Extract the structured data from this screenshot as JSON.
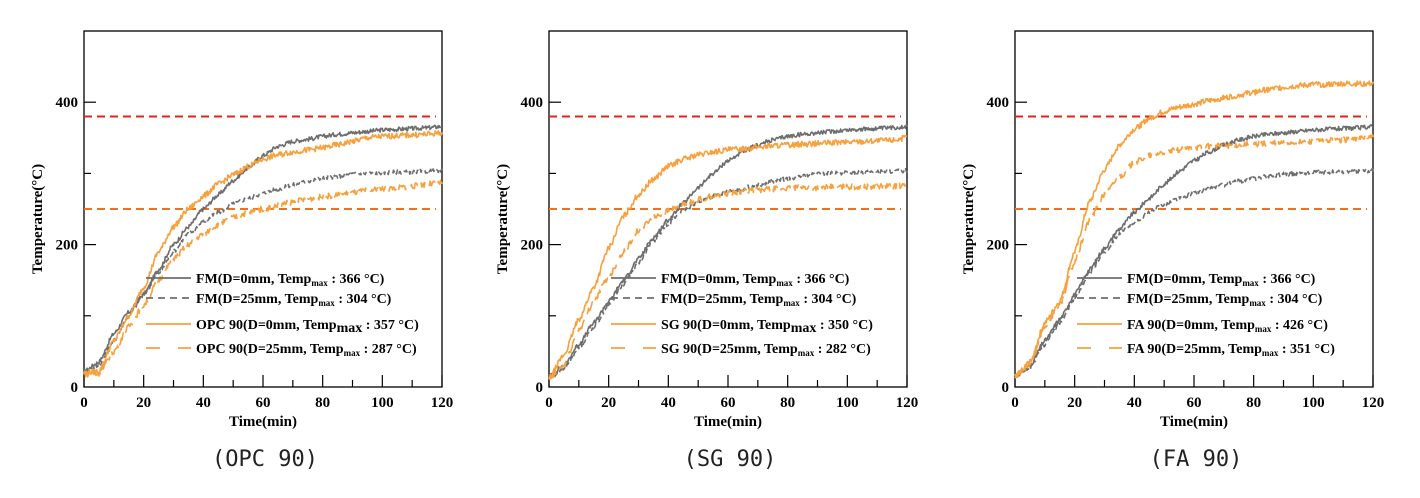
{
  "chart_data": [
    {
      "type": "line",
      "caption": "(OPC 90)",
      "xlabel": "Time(min)",
      "ylabel": "Temperature(°C)",
      "xlim": [
        0,
        120
      ],
      "ylim": [
        0,
        500
      ],
      "xticks": [
        0,
        20,
        40,
        60,
        80,
        100,
        120
      ],
      "yticks_labeled": [
        0,
        200,
        400
      ],
      "yticks_minor": [
        100,
        300
      ],
      "grid": false,
      "legend_position": "lower-right",
      "reference_lines": [
        {
          "name": "limit-380",
          "y": 380,
          "color": "#e8201c",
          "style": "dashed"
        },
        {
          "name": "limit-250",
          "y": 250,
          "color": "#f07020",
          "style": "dashed"
        }
      ],
      "x": [
        0,
        5,
        10,
        15,
        20,
        25,
        30,
        35,
        40,
        45,
        50,
        55,
        60,
        65,
        70,
        75,
        80,
        85,
        90,
        95,
        100,
        105,
        110,
        115,
        120
      ],
      "series": [
        {
          "name": "FM(D=0mm, Temp_max : 366 °C)",
          "label_main": "FM(D=0mm, Temp",
          "label_sub": "max",
          "label_end": " : 366 °C)",
          "color": "#6e6e6e",
          "style": "solid",
          "values": [
            22,
            35,
            75,
            105,
            130,
            165,
            200,
            225,
            250,
            270,
            290,
            308,
            325,
            338,
            345,
            348,
            352,
            355,
            357,
            359,
            361,
            362,
            363,
            364,
            366
          ]
        },
        {
          "name": "FM(D=25mm, Temp_max : 304 °C)",
          "label_main": "FM(D=25mm, Temp",
          "label_sub": "max",
          "label_end": " : 304 °C)",
          "color": "#6e6e6e",
          "style": "dashed",
          "values": [
            20,
            30,
            65,
            100,
            130,
            160,
            190,
            215,
            232,
            245,
            257,
            265,
            272,
            278,
            284,
            289,
            293,
            296,
            299,
            300,
            301,
            302,
            302,
            303,
            304
          ]
        },
        {
          "name": "OPC 90(D=0mm, Temp_max : 357 °C)",
          "label_main": "OPC 90(D=0mm, Temp",
          "label_sub": "max",
          "label_end": " : 357 °C)",
          "color": "#f7a03c",
          "style": "solid",
          "sub_big": true,
          "values": [
            20,
            22,
            65,
            100,
            140,
            190,
            225,
            250,
            268,
            285,
            298,
            310,
            320,
            326,
            330,
            333,
            336,
            340,
            345,
            350,
            352,
            353,
            354,
            355,
            357
          ]
        },
        {
          "name": "OPC 90(D=25mm, Temp_max : 287 °C)",
          "label_main": "OPC 90(D=25mm, Temp",
          "label_sub": "max",
          "label_end": " : 287 °C)",
          "color": "#f7a03c",
          "style": "longdash",
          "values": [
            18,
            18,
            50,
            85,
            115,
            150,
            180,
            200,
            215,
            228,
            238,
            245,
            250,
            255,
            260,
            264,
            267,
            270,
            273,
            276,
            278,
            280,
            282,
            285,
            287
          ]
        }
      ]
    },
    {
      "type": "line",
      "caption": "(SG 90)",
      "xlabel": "Time(min)",
      "ylabel": "Temperature(°C)",
      "xlim": [
        0,
        120
      ],
      "ylim": [
        0,
        500
      ],
      "xticks": [
        0,
        20,
        40,
        60,
        80,
        100,
        120
      ],
      "yticks_labeled": [
        0,
        200,
        400
      ],
      "yticks_minor": [
        100,
        300
      ],
      "grid": false,
      "legend_position": "lower-right",
      "reference_lines": [
        {
          "name": "limit-380",
          "y": 380,
          "color": "#e8201c",
          "style": "dashed"
        },
        {
          "name": "limit-250",
          "y": 250,
          "color": "#f07020",
          "style": "dashed"
        }
      ],
      "x": [
        0,
        5,
        10,
        15,
        20,
        25,
        30,
        35,
        40,
        45,
        50,
        55,
        60,
        65,
        70,
        75,
        80,
        85,
        90,
        95,
        100,
        105,
        110,
        115,
        120
      ],
      "series": [
        {
          "name": "FM(D=0mm, Temp_max : 366 °C)",
          "label_main": "FM(D=0mm, Temp",
          "label_sub": "max",
          "label_end": " : 366 °C)",
          "color": "#6e6e6e",
          "style": "solid",
          "values": [
            15,
            30,
            60,
            90,
            120,
            150,
            180,
            210,
            235,
            258,
            280,
            300,
            318,
            330,
            340,
            347,
            352,
            355,
            357,
            359,
            361,
            362,
            363,
            364,
            366
          ]
        },
        {
          "name": "FM(D=25mm, Temp_max : 304 °C)",
          "label_main": "FM(D=25mm, Temp",
          "label_sub": "max",
          "label_end": " : 304 °C)",
          "color": "#6e6e6e",
          "style": "dashed",
          "values": [
            12,
            25,
            55,
            85,
            115,
            145,
            175,
            205,
            230,
            248,
            260,
            268,
            274,
            279,
            284,
            289,
            293,
            296,
            299,
            300,
            301,
            302,
            302,
            303,
            304
          ]
        },
        {
          "name": "SG 90(D=0mm, Temp_max : 350 °C)",
          "label_main": "SG 90(D=0mm, Temp",
          "label_sub": "max",
          "label_end": " : 350 °C)",
          "color": "#f7a03c",
          "style": "solid",
          "sub_big": true,
          "values": [
            12,
            45,
            95,
            140,
            195,
            240,
            270,
            292,
            310,
            320,
            326,
            330,
            333,
            335,
            337,
            339,
            340,
            341,
            342,
            343,
            344,
            345,
            346,
            347,
            350
          ]
        },
        {
          "name": "SG 90(D=25mm, Temp_max : 282 °C)",
          "label_main": "SG 90(D=25mm, Temp",
          "label_sub": "max",
          "label_end": " : 282 °C)",
          "color": "#f7a03c",
          "style": "longdash",
          "values": [
            10,
            30,
            80,
            120,
            155,
            190,
            220,
            238,
            248,
            256,
            263,
            268,
            272,
            275,
            277,
            278,
            279,
            280,
            280,
            281,
            281,
            281,
            282,
            282,
            282
          ]
        }
      ]
    },
    {
      "type": "line",
      "caption": "(FA 90)",
      "xlabel": "Time(min)",
      "ylabel": "Temperature(°C)",
      "xlim": [
        0,
        120
      ],
      "ylim": [
        0,
        500
      ],
      "xticks": [
        0,
        20,
        40,
        60,
        80,
        100,
        120
      ],
      "yticks_labeled": [
        0,
        200,
        400
      ],
      "yticks_minor": [
        100,
        300
      ],
      "grid": false,
      "legend_position": "lower-right",
      "reference_lines": [
        {
          "name": "limit-380",
          "y": 380,
          "color": "#e8201c",
          "style": "dashed"
        },
        {
          "name": "limit-250",
          "y": 250,
          "color": "#f07020",
          "style": "dashed"
        }
      ],
      "x": [
        0,
        5,
        10,
        15,
        20,
        25,
        30,
        35,
        40,
        45,
        50,
        55,
        60,
        65,
        70,
        75,
        80,
        85,
        90,
        95,
        100,
        105,
        110,
        115,
        120
      ],
      "series": [
        {
          "name": "FM(D=0mm, Temp_max : 366 °C)",
          "label_main": "FM(D=0mm, Temp",
          "label_sub": "max",
          "label_end": " : 366 °C)",
          "color": "#6e6e6e",
          "style": "solid",
          "values": [
            15,
            30,
            65,
            95,
            130,
            165,
            195,
            222,
            245,
            265,
            285,
            303,
            318,
            330,
            340,
            347,
            352,
            355,
            357,
            359,
            361,
            362,
            363,
            364,
            366
          ]
        },
        {
          "name": "FM(D=25mm, Temp_max : 304 °C)",
          "label_main": "FM(D=25mm, Temp",
          "label_sub": "max",
          "label_end": " : 304 °C)",
          "color": "#6e6e6e",
          "style": "dashed",
          "values": [
            15,
            28,
            60,
            90,
            125,
            160,
            190,
            215,
            232,
            245,
            257,
            265,
            272,
            278,
            284,
            289,
            293,
            296,
            299,
            300,
            301,
            302,
            302,
            303,
            304
          ]
        },
        {
          "name": "FA 90(D=0mm, Temp_max : 426 °C)",
          "label_main": "FA 90(D=0mm, Temp",
          "label_sub": "max",
          "label_end": " : 426 °C)",
          "color": "#f7a03c",
          "style": "solid",
          "values": [
            15,
            35,
            90,
            120,
            190,
            260,
            305,
            340,
            362,
            377,
            387,
            393,
            397,
            402,
            406,
            410,
            414,
            418,
            421,
            423,
            425,
            425,
            426,
            426,
            426
          ]
        },
        {
          "name": "FA 90(D=25mm, Temp_max : 351 °C)",
          "label_main": "FA 90(D=25mm, Temp",
          "label_sub": "max",
          "label_end": " : 351 °C)",
          "color": "#f7a03c",
          "style": "longdash",
          "values": [
            15,
            30,
            85,
            115,
            175,
            235,
            270,
            295,
            315,
            325,
            330,
            333,
            336,
            338,
            339,
            340,
            341,
            342,
            343,
            344,
            345,
            346,
            347,
            349,
            351
          ]
        }
      ]
    }
  ]
}
